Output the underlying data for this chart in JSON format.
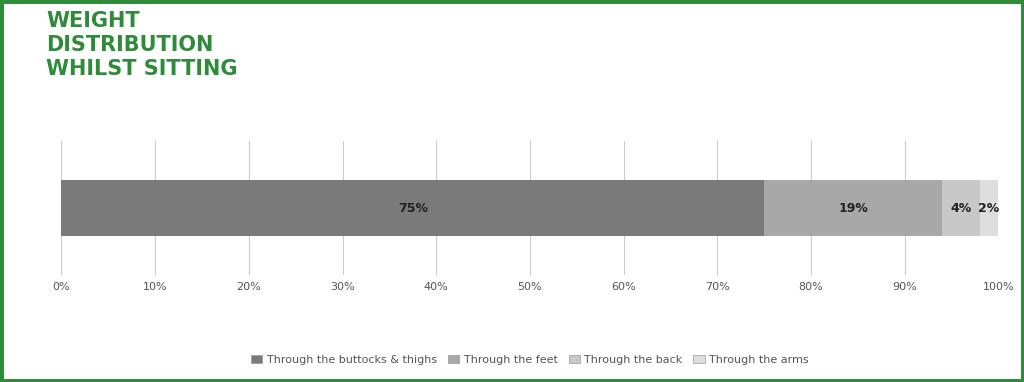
{
  "title_lines": [
    "WEIGHT",
    "DISTRIBUTION",
    "WHILST SITTING"
  ],
  "title_color": "#2e8b3a",
  "title_fontsize": 15,
  "title_fontweight": "bold",
  "segments": [
    {
      "label": "Through the buttocks & thighs",
      "value": 75,
      "color": "#7a7a7a"
    },
    {
      "label": "Through the feet",
      "value": 19,
      "color": "#a8a8a8"
    },
    {
      "label": "Through the back",
      "value": 4,
      "color": "#c8c8c8"
    },
    {
      "label": "Through the arms",
      "value": 2,
      "color": "#dedede"
    }
  ],
  "bar_labels": [
    "75%",
    "19%",
    "4%",
    "2%"
  ],
  "xlim": [
    0,
    100
  ],
  "xticks": [
    0,
    10,
    20,
    30,
    40,
    50,
    60,
    70,
    80,
    90,
    100
  ],
  "xticklabels": [
    "0%",
    "10%",
    "20%",
    "30%",
    "40%",
    "50%",
    "60%",
    "70%",
    "80%",
    "90%",
    "100%"
  ],
  "grid_color": "#cccccc",
  "background_color": "#ffffff",
  "border_color": "#2e8b3a",
  "border_linewidth": 5,
  "bar_height": 0.5,
  "bar_label_fontsize": 9,
  "legend_fontsize": 8,
  "tick_fontsize": 8,
  "tick_color": "#555555"
}
